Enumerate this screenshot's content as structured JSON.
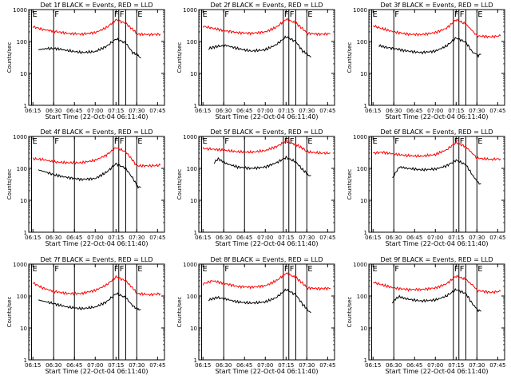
{
  "shared": {
    "ylabel": "Counts/sec",
    "xlabel": "Start Time (22-Oct-04 06:11:40)",
    "x_ticks": [
      "06:15",
      "06:30",
      "06:45",
      "07:00",
      "07:15",
      "07:30",
      "07:45"
    ],
    "y_ticks": [
      "1",
      "10",
      "100",
      "1000"
    ],
    "xlim": [
      "06:12",
      "07:50"
    ],
    "ylim": [
      1,
      1000
    ],
    "y_scale": "log",
    "colors": {
      "events": "#000000",
      "lld": "#ff0000"
    }
  },
  "chart_data": [
    {
      "type": "line",
      "title": "Det 1f BLACK = Events, RED = LLD",
      "xlabel": "Start Time (22-Oct-04 06:11:40)",
      "ylabel": "Counts/sec",
      "ylim": [
        1,
        1000
      ],
      "markers": [
        {
          "t": "06:14",
          "label": "E"
        },
        {
          "t": "06:30",
          "label": "F"
        },
        {
          "t": "07:13",
          "label": "F"
        },
        {
          "t": "07:17",
          "label": "F"
        },
        {
          "t": "07:30",
          "label": "E"
        }
      ],
      "extra_lines": [
        "07:22"
      ],
      "series": [
        {
          "name": "RED = LLD",
          "color": "#ff0000",
          "x": [
            "06:15",
            "06:22",
            "06:30",
            "06:40",
            "06:50",
            "07:00",
            "07:08",
            "07:15",
            "07:22",
            "07:28",
            "07:30",
            "07:40",
            "07:47"
          ],
          "y": [
            290,
            240,
            210,
            180,
            170,
            190,
            270,
            480,
            370,
            220,
            170,
            165,
            170
          ]
        },
        {
          "name": "BLACK = Events",
          "color": "#000000",
          "x": [
            "06:19",
            "06:25",
            "06:32",
            "06:40",
            "06:50",
            "07:00",
            "07:08",
            "07:15",
            "07:22",
            "07:27",
            "07:30",
            "07:31",
            "07:33"
          ],
          "y": [
            55,
            60,
            60,
            52,
            45,
            48,
            70,
            120,
            90,
            45,
            40,
            35,
            30
          ]
        }
      ]
    },
    {
      "type": "line",
      "title": "Det 2f BLACK = Events, RED = LLD",
      "xlabel": "Start Time (22-Oct-04 06:11:40)",
      "ylabel": "Counts/sec",
      "ylim": [
        1,
        1000
      ],
      "markers": [
        {
          "t": "06:14",
          "label": "E"
        },
        {
          "t": "06:30",
          "label": "F"
        },
        {
          "t": "07:13",
          "label": "F"
        },
        {
          "t": "07:17",
          "label": "F"
        },
        {
          "t": "07:30",
          "label": "E"
        }
      ],
      "extra_lines": [
        "07:22"
      ],
      "series": [
        {
          "name": "RED = LLD",
          "color": "#ff0000",
          "x": [
            "06:15",
            "06:22",
            "06:30",
            "06:40",
            "06:50",
            "07:00",
            "07:08",
            "07:15",
            "07:22",
            "07:28",
            "07:30",
            "07:40",
            "07:47"
          ],
          "y": [
            300,
            260,
            220,
            190,
            180,
            200,
            280,
            500,
            380,
            230,
            180,
            170,
            175
          ]
        },
        {
          "name": "BLACK = Events",
          "color": "#000000",
          "x": [
            "06:19",
            "06:25",
            "06:32",
            "06:40",
            "06:50",
            "07:00",
            "07:08",
            "07:15",
            "07:22",
            "07:27",
            "07:30",
            "07:31",
            "07:33"
          ],
          "y": [
            60,
            70,
            75,
            60,
            50,
            55,
            80,
            140,
            100,
            50,
            42,
            36,
            32
          ]
        }
      ]
    },
    {
      "type": "line",
      "title": "Det 3f BLACK = Events, RED = LLD",
      "xlabel": "Start Time (22-Oct-04 06:11:40)",
      "ylabel": "Counts/sec",
      "ylim": [
        1,
        1000
      ],
      "markers": [
        {
          "t": "06:14",
          "label": "E"
        },
        {
          "t": "06:30",
          "label": "F"
        },
        {
          "t": "07:13",
          "label": "F"
        },
        {
          "t": "07:17",
          "label": "F"
        },
        {
          "t": "07:30",
          "label": "E"
        }
      ],
      "extra_lines": [
        "07:22"
      ],
      "series": [
        {
          "name": "RED = LLD",
          "color": "#ff0000",
          "x": [
            "06:15",
            "06:22",
            "06:30",
            "06:40",
            "06:50",
            "07:00",
            "07:08",
            "07:15",
            "07:22",
            "07:28",
            "07:30",
            "07:40",
            "07:47"
          ],
          "y": [
            310,
            250,
            200,
            170,
            165,
            190,
            260,
            480,
            350,
            190,
            150,
            140,
            150
          ]
        },
        {
          "name": "BLACK = Events",
          "color": "#000000",
          "x": [
            "06:19",
            "06:25",
            "06:32",
            "06:40",
            "06:50",
            "07:00",
            "07:08",
            "07:15",
            "07:22",
            "07:27",
            "07:30",
            "07:31",
            "07:33"
          ],
          "y": [
            75,
            65,
            58,
            50,
            45,
            50,
            72,
            130,
            95,
            45,
            40,
            36,
            40
          ]
        }
      ]
    },
    {
      "type": "line",
      "title": "Det 4f BLACK = Events, RED = LLD",
      "xlabel": "Start Time (22-Oct-04 06:11:40)",
      "ylabel": "Counts/sec",
      "ylim": [
        1,
        1000
      ],
      "markers": [
        {
          "t": "06:14",
          "label": "E"
        },
        {
          "t": "06:30",
          "label": "F"
        },
        {
          "t": "07:13",
          "label": "F"
        },
        {
          "t": "07:17",
          "label": "F"
        },
        {
          "t": "07:30",
          "label": "E"
        }
      ],
      "extra_lines": [
        "06:45",
        "07:22"
      ],
      "series": [
        {
          "name": "RED = LLD",
          "color": "#ff0000",
          "x": [
            "06:15",
            "06:22",
            "06:30",
            "06:40",
            "06:50",
            "07:00",
            "07:08",
            "07:15",
            "07:22",
            "07:28",
            "07:30",
            "07:40",
            "07:47"
          ],
          "y": [
            200,
            190,
            160,
            150,
            150,
            180,
            260,
            450,
            330,
            160,
            120,
            120,
            125
          ]
        },
        {
          "name": "BLACK = Events",
          "color": "#000000",
          "x": [
            "06:19",
            "06:25",
            "06:32",
            "06:40",
            "06:50",
            "07:00",
            "07:08",
            "07:15",
            "07:22",
            "07:27",
            "07:30",
            "07:31",
            "07:33"
          ],
          "y": [
            90,
            75,
            60,
            52,
            45,
            48,
            75,
            140,
            100,
            50,
            30,
            27,
            25
          ]
        }
      ]
    },
    {
      "type": "line",
      "title": "Det 5f BLACK = Events, RED = LLD",
      "xlabel": "Start Time (22-Oct-04 06:11:40)",
      "ylabel": "Counts/sec",
      "ylim": [
        1,
        1000
      ],
      "markers": [
        {
          "t": "06:14",
          "label": "E"
        },
        {
          "t": "06:30",
          "label": "F"
        },
        {
          "t": "07:13",
          "label": "F"
        },
        {
          "t": "07:17",
          "label": "F"
        },
        {
          "t": "07:30",
          "label": "E"
        }
      ],
      "extra_lines": [
        "06:45",
        "07:22"
      ],
      "series": [
        {
          "name": "RED = LLD",
          "color": "#ff0000",
          "x": [
            "06:15",
            "06:22",
            "06:30",
            "06:40",
            "06:50",
            "07:00",
            "07:08",
            "07:15",
            "07:22",
            "07:28",
            "07:30",
            "07:40",
            "07:47"
          ],
          "y": [
            420,
            400,
            370,
            330,
            320,
            360,
            480,
            700,
            560,
            400,
            330,
            300,
            300
          ]
        },
        {
          "name": "BLACK = Events",
          "color": "#000000",
          "x": [
            "06:23",
            "06:26",
            "06:32",
            "06:40",
            "06:50",
            "07:00",
            "07:08",
            "07:15",
            "07:22",
            "07:27",
            "07:30",
            "07:31",
            "07:33"
          ],
          "y": [
            150,
            200,
            140,
            110,
            100,
            110,
            150,
            220,
            160,
            90,
            70,
            62,
            60
          ]
        }
      ]
    },
    {
      "type": "line",
      "title": "Det 6f BLACK = Events, RED = LLD",
      "xlabel": "Start Time (22-Oct-04 06:11:40)",
      "ylabel": "Counts/sec",
      "ylim": [
        1,
        1000
      ],
      "markers": [
        {
          "t": "06:14",
          "label": "E"
        },
        {
          "t": "06:30",
          "label": "F"
        },
        {
          "t": "07:13",
          "label": "F"
        },
        {
          "t": "07:17",
          "label": "F"
        },
        {
          "t": "07:30",
          "label": "E"
        }
      ],
      "extra_lines": [
        "07:22"
      ],
      "series": [
        {
          "name": "RED = LLD",
          "color": "#ff0000",
          "x": [
            "06:15",
            "06:22",
            "06:30",
            "06:40",
            "06:50",
            "07:00",
            "07:08",
            "07:15",
            "07:22",
            "07:28",
            "07:30",
            "07:40",
            "07:47"
          ],
          "y": [
            300,
            320,
            280,
            250,
            240,
            270,
            380,
            650,
            470,
            260,
            210,
            190,
            200
          ]
        },
        {
          "name": "BLACK = Events",
          "color": "#000000",
          "x": [
            "06:29",
            "06:31",
            "06:34",
            "06:40",
            "06:50",
            "07:00",
            "07:08",
            "07:15",
            "07:22",
            "07:27",
            "07:30",
            "07:31",
            "07:33"
          ],
          "y": [
            50,
            70,
            110,
            100,
            90,
            95,
            120,
            180,
            130,
            60,
            40,
            35,
            33
          ]
        }
      ]
    },
    {
      "type": "line",
      "title": "Det 7f BLACK = Events, RED = LLD",
      "xlabel": "Start Time (22-Oct-04 06:11:40)",
      "ylabel": "Counts/sec",
      "ylim": [
        1,
        1000
      ],
      "markers": [
        {
          "t": "06:14",
          "label": "E"
        },
        {
          "t": "06:30",
          "label": "F"
        },
        {
          "t": "07:13",
          "label": "F"
        },
        {
          "t": "07:17",
          "label": "F"
        },
        {
          "t": "07:30",
          "label": "E"
        }
      ],
      "extra_lines": [
        "06:45",
        "07:22"
      ],
      "series": [
        {
          "name": "RED = LLD",
          "color": "#ff0000",
          "x": [
            "06:15",
            "06:22",
            "06:30",
            "06:40",
            "06:50",
            "07:00",
            "07:08",
            "07:15",
            "07:22",
            "07:28",
            "07:30",
            "07:40",
            "07:47"
          ],
          "y": [
            260,
            180,
            140,
            120,
            120,
            150,
            220,
            400,
            300,
            160,
            120,
            110,
            120
          ]
        },
        {
          "name": "BLACK = Events",
          "color": "#000000",
          "x": [
            "06:19",
            "06:25",
            "06:32",
            "06:40",
            "06:50",
            "07:00",
            "07:08",
            "07:15",
            "07:22",
            "07:27",
            "07:30",
            "07:31",
            "07:33"
          ],
          "y": [
            75,
            65,
            55,
            45,
            40,
            45,
            65,
            120,
            90,
            50,
            40,
            37,
            38
          ]
        }
      ]
    },
    {
      "type": "line",
      "title": "Det 8f BLACK = Events, RED = LLD",
      "xlabel": "Start Time (22-Oct-04 06:11:40)",
      "ylabel": "Counts/sec",
      "ylim": [
        1,
        1000
      ],
      "markers": [
        {
          "t": "06:14",
          "label": "E"
        },
        {
          "t": "06:30",
          "label": "F"
        },
        {
          "t": "07:13",
          "label": "F"
        },
        {
          "t": "07:17",
          "label": "F"
        },
        {
          "t": "07:30",
          "label": "E"
        }
      ],
      "extra_lines": [
        "07:22"
      ],
      "series": [
        {
          "name": "RED = LLD",
          "color": "#ff0000",
          "x": [
            "06:15",
            "06:22",
            "06:30",
            "06:40",
            "06:50",
            "07:00",
            "07:08",
            "07:15",
            "07:22",
            "07:28",
            "07:30",
            "07:40",
            "07:47"
          ],
          "y": [
            240,
            300,
            250,
            200,
            190,
            210,
            300,
            520,
            380,
            230,
            180,
            170,
            175
          ]
        },
        {
          "name": "BLACK = Events",
          "color": "#000000",
          "x": [
            "06:19",
            "06:25",
            "06:32",
            "06:40",
            "06:50",
            "07:00",
            "07:08",
            "07:15",
            "07:22",
            "07:27",
            "07:30",
            "07:31",
            "07:33"
          ],
          "y": [
            75,
            90,
            80,
            65,
            60,
            65,
            90,
            160,
            110,
            55,
            40,
            33,
            30
          ]
        }
      ]
    },
    {
      "type": "line",
      "title": "Det 9f BLACK = Events, RED = LLD",
      "xlabel": "Start Time (22-Oct-04 06:11:40)",
      "ylabel": "Counts/sec",
      "ylim": [
        1,
        1000
      ],
      "markers": [
        {
          "t": "06:14",
          "label": "E"
        },
        {
          "t": "06:30",
          "label": "F"
        },
        {
          "t": "07:13",
          "label": "F"
        },
        {
          "t": "07:17",
          "label": "F"
        },
        {
          "t": "07:30",
          "label": "E"
        }
      ],
      "extra_lines": [
        "07:22"
      ],
      "series": [
        {
          "name": "RED = LLD",
          "color": "#ff0000",
          "x": [
            "06:15",
            "06:22",
            "06:30",
            "06:40",
            "06:50",
            "07:00",
            "07:08",
            "07:15",
            "07:22",
            "07:28",
            "07:30",
            "07:40",
            "07:47"
          ],
          "y": [
            270,
            220,
            180,
            160,
            160,
            180,
            240,
            420,
            330,
            200,
            150,
            130,
            140
          ]
        },
        {
          "name": "BLACK = Events",
          "color": "#000000",
          "x": [
            "06:29",
            "06:31",
            "06:34",
            "06:40",
            "06:50",
            "07:00",
            "07:08",
            "07:15",
            "07:22",
            "07:27",
            "07:30",
            "07:31",
            "07:33"
          ],
          "y": [
            60,
            80,
            95,
            80,
            70,
            75,
            100,
            160,
            120,
            55,
            40,
            35,
            33
          ]
        }
      ]
    }
  ]
}
